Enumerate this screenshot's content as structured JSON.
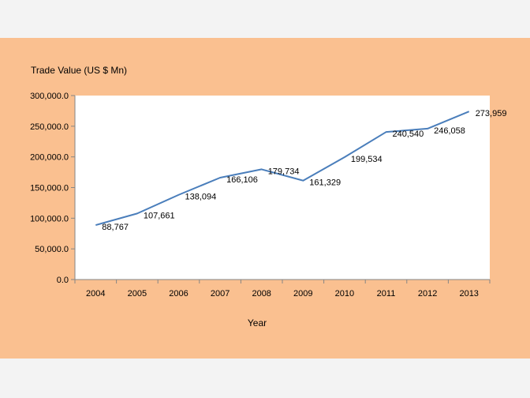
{
  "chart_data": {
    "type": "line",
    "title": "",
    "ylabel": "Trade Value (US $ Mn)",
    "xlabel": "Year",
    "categories": [
      "2004",
      "2005",
      "2006",
      "2007",
      "2008",
      "2009",
      "2010",
      "2011",
      "2012",
      "2013"
    ],
    "series": [
      {
        "values": [
          88767,
          107661,
          138094,
          166106,
          179734,
          161329,
          199534,
          240540,
          246058,
          273959
        ],
        "labels": [
          "88,767",
          "107,661",
          "138,094",
          "166,106",
          "179,734",
          "161,329",
          "199,534",
          "240,540",
          "246,058",
          "273,959"
        ],
        "color": "#4a7ebb"
      }
    ],
    "ylim": [
      0,
      300000
    ],
    "yticks": [
      0,
      50000,
      100000,
      150000,
      200000,
      250000,
      300000
    ],
    "ytick_labels": [
      "0.0",
      "50,000.0",
      "100,000.0",
      "150,000.0",
      "200,000.0",
      "250,000.0",
      "300,000.0"
    ],
    "grid": false,
    "legend": "none",
    "plot_background": "#ffffff",
    "chart_background": "#fac090"
  }
}
